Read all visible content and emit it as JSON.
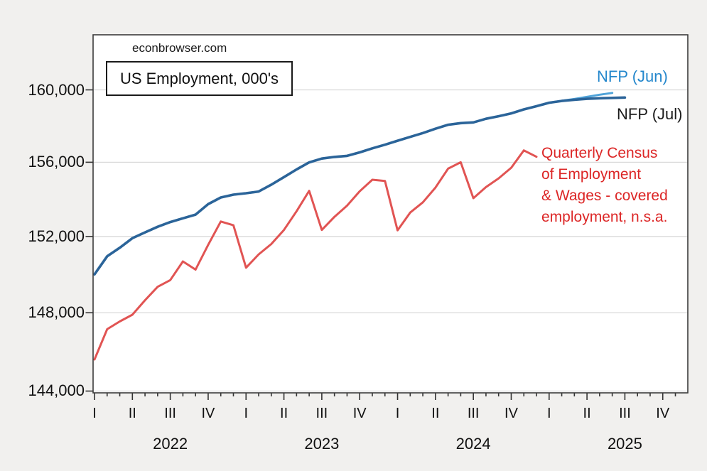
{
  "watermark": "econbrowser.com",
  "title_box": {
    "text": "US Employment, 000's"
  },
  "annotations": {
    "nfp_jun": {
      "text": "NFP (Jun)",
      "color": "#2487cc"
    },
    "nfp_jul": {
      "text": "NFP (Jul)",
      "color": "#1b1b1b"
    },
    "qcew": {
      "lines": [
        "Quarterly Census",
        "of Employment",
        "& Wages - covered",
        "employment, n.s.a."
      ],
      "color": "#dc2626"
    }
  },
  "chart_data": {
    "type": "line",
    "title": "US Employment, 000's",
    "watermark": "econbrowser.com",
    "units": "thousands",
    "yscale": "log",
    "ylim": [
      143400,
      162900
    ],
    "yticks": [
      160000,
      156000,
      152000,
      148000,
      144000
    ],
    "ytick_labels": [
      "160,000",
      "156,000",
      "152,000",
      "148,000",
      "144,000"
    ],
    "grid": "horizontal",
    "x_axis": {
      "start_month": "2022-01",
      "months_on_axis": 48,
      "minor_tick": "month",
      "major_tick": "quarter",
      "quarter_labels": [
        "I",
        "II",
        "III",
        "IV",
        "I",
        "II",
        "III",
        "IV",
        "I",
        "II",
        "III",
        "IV",
        "I",
        "II",
        "III",
        "IV"
      ],
      "year_labels": [
        "2022",
        "2023",
        "2024",
        "2025"
      ]
    },
    "series": [
      {
        "name": "NFP (Jun)",
        "color": "#4fa3d9",
        "line_width": 3.0,
        "start_month": "2022-01",
        "values": [
          150000,
          150950,
          151400,
          151910,
          152220,
          152520,
          152770,
          152970,
          153170,
          153730,
          154090,
          154240,
          154320,
          154410,
          154780,
          155190,
          155610,
          155990,
          156200,
          156290,
          156350,
          156540,
          156760,
          156960,
          157180,
          157390,
          157600,
          157840,
          158060,
          158150,
          158190,
          158390,
          158530,
          158690,
          158910,
          159090,
          159280,
          159390,
          159490,
          159610,
          159730,
          159830
        ]
      },
      {
        "name": "NFP (Jul)",
        "color": "#2b6499",
        "line_width": 3.6,
        "start_month": "2022-01",
        "values": [
          150000,
          150950,
          151400,
          151910,
          152220,
          152520,
          152770,
          152970,
          153170,
          153730,
          154090,
          154240,
          154320,
          154410,
          154780,
          155190,
          155610,
          155990,
          156200,
          156290,
          156350,
          156540,
          156760,
          156960,
          157180,
          157390,
          157600,
          157840,
          158060,
          158150,
          158190,
          158390,
          158530,
          158690,
          158910,
          159090,
          159280,
          159380,
          159450,
          159500,
          159530,
          159550,
          159570
        ]
      },
      {
        "name": "Quarterly Census of Employment & Wages - covered employment, n.s.a.",
        "color": "#e15453",
        "line_width": 3.0,
        "start_month": "2022-01",
        "values": [
          145600,
          147150,
          147550,
          147900,
          148650,
          149350,
          149700,
          150680,
          150250,
          151550,
          152800,
          152600,
          150350,
          151050,
          151600,
          152350,
          153350,
          154450,
          152350,
          153050,
          153650,
          154420,
          155050,
          154980,
          152330,
          153280,
          153830,
          154620,
          155650,
          156000,
          154050,
          154650,
          155120,
          155700,
          156650,
          156300
        ]
      }
    ]
  }
}
